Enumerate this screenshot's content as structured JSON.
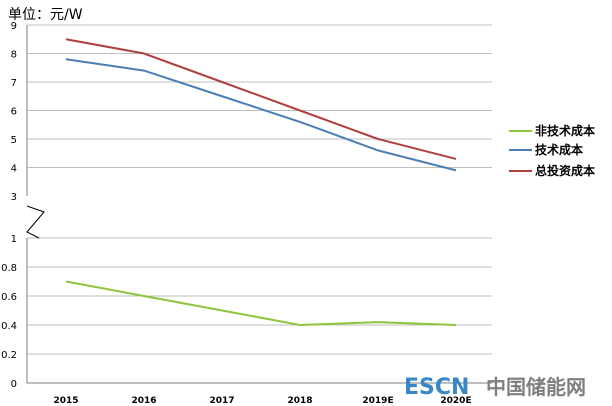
{
  "chart_data": [
    {
      "type": "line",
      "title": "",
      "unit_label": "单位：元/W",
      "categories": [
        "2015",
        "2016",
        "2017",
        "2018",
        "2019E",
        "2020E"
      ],
      "ylim": [
        3,
        9
      ],
      "yticks": [
        "3",
        "4",
        "5",
        "6",
        "7",
        "8",
        "9"
      ],
      "grid": true,
      "series": [
        {
          "name": "技术成本",
          "color": "#4a7eb5",
          "values": [
            7.8,
            7.4,
            6.5,
            5.6,
            4.6,
            3.9
          ]
        },
        {
          "name": "总投资成本",
          "color": "#b0403c",
          "values": [
            8.5,
            8.0,
            7.0,
            6.0,
            5.0,
            4.3
          ]
        }
      ]
    },
    {
      "type": "line",
      "title": "",
      "categories": [
        "2015",
        "2016",
        "2017",
        "2018",
        "2019E",
        "2020E"
      ],
      "ylim": [
        0,
        1
      ],
      "yticks": [
        "0",
        "0.2",
        "0.4",
        "0.6",
        "0.8",
        "1"
      ],
      "grid": true,
      "series": [
        {
          "name": "非技术成本",
          "color": "#8fc43c",
          "values": [
            0.7,
            0.6,
            0.5,
            0.4,
            0.42,
            0.4
          ]
        }
      ]
    }
  ],
  "legend": {
    "placement": "right",
    "items": [
      {
        "label": "非技术成本",
        "color": "#8fc43c"
      },
      {
        "label": "技术成本",
        "color": "#4a7eb5"
      },
      {
        "label": "总投资成本",
        "color": "#b0403c"
      }
    ]
  },
  "watermark": {
    "latin": "ESCN",
    "cjk": "中国储能网"
  }
}
